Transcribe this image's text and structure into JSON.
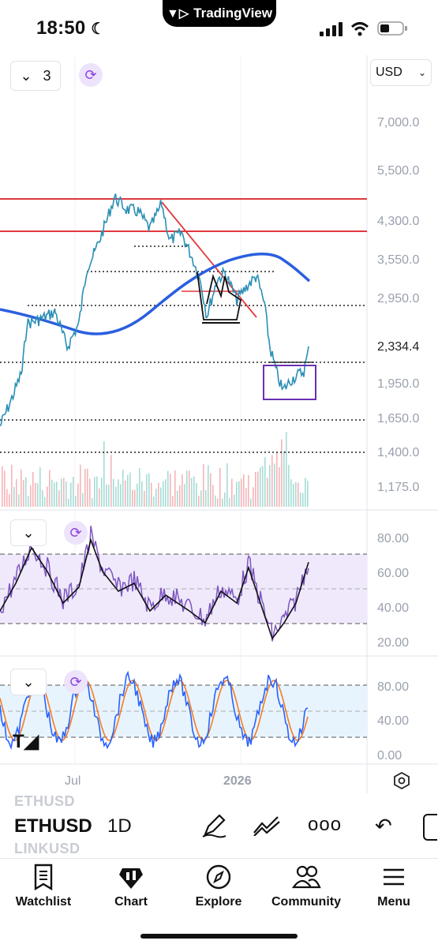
{
  "status": {
    "time": "18:50",
    "app_badge": "TradingView"
  },
  "toolbar": {
    "layout_count": "3",
    "currency": "USD"
  },
  "price_axis": {
    "ticks": [
      "7,000.0",
      "5,500.0",
      "4,300.0",
      "3,550.0",
      "2,950.0",
      "2,334.4",
      "1,950.0",
      "1,650.0",
      "1,400.0",
      "1,175.0"
    ]
  },
  "rsi_axis": {
    "ticks": [
      "80.00",
      "60.00",
      "40.00",
      "20.00"
    ]
  },
  "stoch_axis": {
    "ticks": [
      "80.00",
      "40.00",
      "0.00"
    ]
  },
  "time_axis": {
    "labels": [
      "Jul",
      "2026"
    ]
  },
  "instrument": {
    "symbol": "ETHUSD",
    "interval": "1D",
    "ghost_above": "ETHUSD",
    "ghost_below": "LINKUSD"
  },
  "tabs": [
    {
      "label": "Watchlist",
      "icon": "watchlist-icon"
    },
    {
      "label": "Chart",
      "icon": "chart-icon"
    },
    {
      "label": "Explore",
      "icon": "compass-icon"
    },
    {
      "label": "Community",
      "icon": "community-icon"
    },
    {
      "label": "Menu",
      "icon": "menu-icon"
    }
  ],
  "colors": {
    "accent": "#2962ff",
    "price_line": "#2a8fb5",
    "ma_line": "#2b5fe0",
    "rsi_line": "#7e57c2",
    "stoch_k": "#2962ff",
    "stoch_d": "#f57c22",
    "level_red": "#e0393e"
  }
}
